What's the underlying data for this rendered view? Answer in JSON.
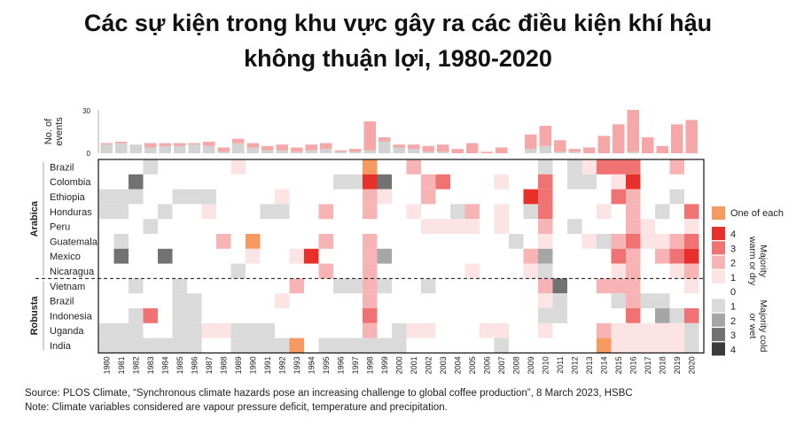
{
  "title_line1": "Các sự kiện trong khu vực gây ra các điều kiện khí hậu",
  "title_line2": "không thuận lợi, 1980-2020",
  "source": "Source: PLOS Climate, “Synchronous climate hazards pose an increasing challenge to global coffee production”, 8 March 2023, HSBC",
  "note": "Note: Climate variables considered are vapour pressure deficit, temperature and precipitation.",
  "colors": {
    "w1": "#fde4e4",
    "w2": "#f8b4b4",
    "w3": "#f07272",
    "w4": "#e8302a",
    "c1": "#dadada",
    "c2": "#a6a6a6",
    "c3": "#727272",
    "c4": "#3b3b3b",
    "one_of_each": "#f79a62",
    "zero": "#ffffff"
  },
  "chart_data": {
    "type": "heatmap",
    "years": [
      "1980",
      "1981",
      "1982",
      "1983",
      "1984",
      "1985",
      "1986",
      "1987",
      "1988",
      "1989",
      "1990",
      "1991",
      "1992",
      "1993",
      "1994",
      "1995",
      "1996",
      "1997",
      "1998",
      "1999",
      "2000",
      "2001",
      "2002",
      "2003",
      "2004",
      "2005",
      "2006",
      "2007",
      "2008",
      "2009",
      "2010",
      "2011",
      "2012",
      "2013",
      "2014",
      "2015",
      "2016",
      "2017",
      "2018",
      "2019",
      "2020"
    ],
    "top_axis": {
      "label": "No. of events",
      "ticks": [
        "30",
        "0"
      ],
      "ylim": [
        0,
        30
      ]
    },
    "events_warm": [
      1,
      1,
      0,
      3,
      2,
      2,
      1,
      3,
      3,
      3,
      3,
      3,
      4,
      3,
      4,
      4,
      1,
      2,
      20,
      3,
      2,
      3,
      4,
      5,
      3,
      7,
      1,
      4,
      0,
      10,
      14,
      8,
      2,
      4,
      12,
      20,
      29,
      11,
      5,
      20,
      23
    ],
    "events_cold": [
      6,
      7,
      6,
      4,
      5,
      5,
      6,
      5,
      1,
      7,
      4,
      2,
      2,
      1,
      2,
      3,
      1,
      1,
      2,
      8,
      4,
      3,
      1,
      1,
      0,
      0,
      0,
      0,
      0,
      3,
      5,
      1,
      1,
      0,
      0,
      0,
      1,
      0,
      0,
      0,
      0
    ],
    "groups": [
      {
        "name": "Arabica",
        "rows": [
          "Brazil",
          "Colombia",
          "Ethiopia",
          "Honduras",
          "Peru",
          "Guatemala",
          "Mexico",
          "Nicaragua"
        ]
      },
      {
        "name": "Robusta",
        "rows": [
          "Vietnam",
          "Brazil",
          "Indonesia",
          "Uganda",
          "India"
        ]
      }
    ],
    "values": [
      [
        "0",
        "0",
        "0",
        "c1",
        "0",
        "0",
        "0",
        "0",
        "0",
        "w1",
        "0",
        "0",
        "0",
        "0",
        "0",
        "0",
        "0",
        "0",
        "o",
        "0",
        "0",
        "w2",
        "0",
        "0",
        "0",
        "0",
        "0",
        "0",
        "0",
        "0",
        "c1",
        "0",
        "c1",
        "w1",
        "w3",
        "w3",
        "w3",
        "0",
        "0",
        "w2",
        "0"
      ],
      [
        "0",
        "0",
        "c3",
        "0",
        "0",
        "0",
        "0",
        "0",
        "0",
        "0",
        "0",
        "0",
        "0",
        "0",
        "0",
        "0",
        "c1",
        "c1",
        "w4",
        "c3",
        "0",
        "0",
        "w2",
        "w3",
        "0",
        "0",
        "0",
        "w1",
        "0",
        "0",
        "w3",
        "0",
        "c1",
        "c1",
        "0",
        "w1",
        "w4",
        "0",
        "0",
        "0",
        "0"
      ],
      [
        "c1",
        "c1",
        "c1",
        "0",
        "0",
        "c1",
        "c1",
        "c1",
        "0",
        "0",
        "0",
        "0",
        "w1",
        "0",
        "0",
        "0",
        "0",
        "0",
        "w2",
        "w1",
        "0",
        "0",
        "w2",
        "0",
        "0",
        "0",
        "0",
        "0",
        "0",
        "w4",
        "w3",
        "0",
        "0",
        "0",
        "0",
        "w3",
        "w2",
        "0",
        "0",
        "c1",
        "0"
      ],
      [
        "c1",
        "c1",
        "0",
        "0",
        "c1",
        "0",
        "0",
        "w1",
        "0",
        "0",
        "0",
        "c1",
        "c1",
        "0",
        "0",
        "w2",
        "0",
        "0",
        "w2",
        "0",
        "0",
        "w1",
        "0",
        "0",
        "c1",
        "w2",
        "0",
        "w1",
        "0",
        "c1",
        "w3",
        "0",
        "0",
        "0",
        "w1",
        "0",
        "w2",
        "0",
        "c1",
        "0",
        "w3"
      ],
      [
        "0",
        "0",
        "0",
        "c1",
        "0",
        "0",
        "0",
        "0",
        "0",
        "0",
        "0",
        "0",
        "0",
        "0",
        "0",
        "0",
        "0",
        "0",
        "0",
        "0",
        "0",
        "0",
        "w1",
        "w1",
        "w1",
        "w1",
        "0",
        "w1",
        "0",
        "0",
        "w2",
        "0",
        "c1",
        "0",
        "0",
        "0",
        "w2",
        "w1",
        "0",
        "0",
        "w1"
      ],
      [
        "0",
        "c1",
        "0",
        "0",
        "0",
        "0",
        "0",
        "0",
        "w2",
        "0",
        "o",
        "0",
        "0",
        "0",
        "0",
        "w2",
        "0",
        "0",
        "w2",
        "0",
        "0",
        "0",
        "0",
        "0",
        "0",
        "0",
        "0",
        "0",
        "c1",
        "0",
        "w1",
        "0",
        "0",
        "w1",
        "c1",
        "w2",
        "w3",
        "w1",
        "w1",
        "w2",
        "w3"
      ],
      [
        "0",
        "c3",
        "0",
        "0",
        "c3",
        "0",
        "0",
        "0",
        "0",
        "0",
        "w1",
        "0",
        "0",
        "w1",
        "w4",
        "0",
        "0",
        "0",
        "w2",
        "c2",
        "0",
        "0",
        "0",
        "0",
        "0",
        "0",
        "0",
        "0",
        "0",
        "w2",
        "c2",
        "0",
        "0",
        "0",
        "0",
        "w3",
        "w2",
        "0",
        "w2",
        "w3",
        "w4"
      ],
      [
        "0",
        "0",
        "0",
        "0",
        "0",
        "0",
        "0",
        "0",
        "0",
        "c1",
        "0",
        "0",
        "0",
        "0",
        "0",
        "w2",
        "0",
        "0",
        "w2",
        "0",
        "0",
        "0",
        "0",
        "0",
        "0",
        "w1",
        "0",
        "0",
        "0",
        "w1",
        "c1",
        "0",
        "0",
        "0",
        "0",
        "w1",
        "w2",
        "0",
        "0",
        "w1",
        "w2"
      ],
      [
        "0",
        "0",
        "c1",
        "0",
        "0",
        "c1",
        "0",
        "0",
        "0",
        "0",
        "0",
        "0",
        "0",
        "w2",
        "0",
        "0",
        "c1",
        "c1",
        "w2",
        "c1",
        "0",
        "0",
        "c1",
        "0",
        "0",
        "0",
        "0",
        "0",
        "0",
        "0",
        "w2",
        "c3",
        "0",
        "0",
        "w2",
        "w2",
        "w2",
        "0",
        "0",
        "0",
        "w1"
      ],
      [
        "0",
        "0",
        "0",
        "0",
        "0",
        "c1",
        "c1",
        "0",
        "0",
        "0",
        "0",
        "0",
        "w1",
        "0",
        "0",
        "0",
        "0",
        "0",
        "w2",
        "0",
        "0",
        "0",
        "0",
        "0",
        "0",
        "0",
        "0",
        "0",
        "0",
        "0",
        "w1",
        "c1",
        "0",
        "0",
        "0",
        "c1",
        "w2",
        "c1",
        "c1",
        "0",
        "0"
      ],
      [
        "0",
        "0",
        "c1",
        "w3",
        "0",
        "c1",
        "c1",
        "0",
        "0",
        "0",
        "0",
        "0",
        "0",
        "0",
        "0",
        "0",
        "0",
        "0",
        "w3",
        "0",
        "0",
        "0",
        "0",
        "0",
        "0",
        "0",
        "0",
        "0",
        "0",
        "0",
        "c1",
        "c1",
        "0",
        "0",
        "0",
        "0",
        "w3",
        "0",
        "c2",
        "c1",
        "w3"
      ],
      [
        "c1",
        "c1",
        "c1",
        "0",
        "0",
        "c1",
        "c1",
        "w1",
        "w1",
        "c1",
        "c1",
        "c1",
        "0",
        "0",
        "0",
        "0",
        "0",
        "0",
        "w2",
        "0",
        "c1",
        "w1",
        "w1",
        "0",
        "0",
        "0",
        "w1",
        "w1",
        "0",
        "0",
        "w1",
        "0",
        "0",
        "0",
        "w2",
        "w1",
        "w1",
        "w1",
        "w1",
        "w1",
        "c1"
      ],
      [
        "c1",
        "c1",
        "c1",
        "c1",
        "c1",
        "c1",
        "c1",
        "0",
        "0",
        "c1",
        "c1",
        "c1",
        "c1",
        "o",
        "0",
        "c1",
        "c1",
        "c1",
        "c1",
        "c1",
        "c1",
        "0",
        "0",
        "0",
        "0",
        "0",
        "0",
        "c1",
        "0",
        "0",
        "0",
        "0",
        "0",
        "0",
        "o",
        "w1",
        "w1",
        "w1",
        "w1",
        "w1",
        "c1"
      ]
    ],
    "legend": {
      "one_of_each": "One of each",
      "warm_levels": [
        "4",
        "3",
        "2",
        "1"
      ],
      "zero": "0",
      "cold_levels": [
        "1",
        "2",
        "3",
        "4"
      ],
      "warm_label": [
        "Majority",
        "warm or dry"
      ],
      "cold_label": [
        "Majority cold",
        "or wet"
      ]
    }
  }
}
